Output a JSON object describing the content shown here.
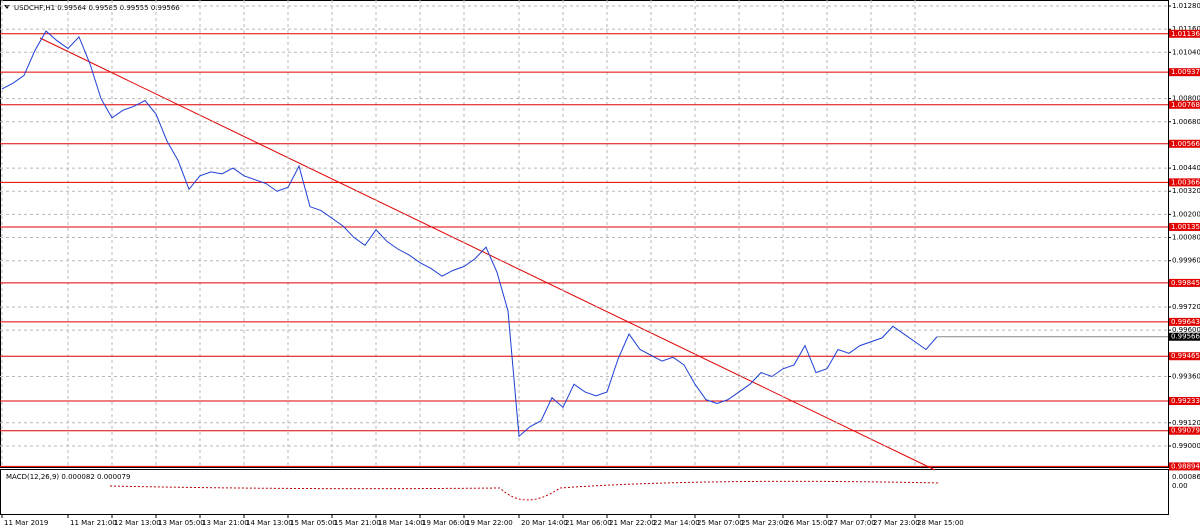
{
  "chart_data": {
    "type": "line",
    "title": "USDCHF,H1  0.99564 0.99585 0.99555 0.99566",
    "categories": [
      "11 Mar 2019",
      null,
      null,
      null,
      null,
      null,
      "11 Mar 21:00",
      null,
      null,
      null,
      "12 Mar 13:00",
      null,
      null,
      null,
      "13 Mar 05:00",
      null,
      null,
      null,
      "13 Mar 21:00",
      null,
      null,
      null,
      "14 Mar 13:00",
      null,
      null,
      null,
      "15 Mar 05:00",
      null,
      null,
      null,
      "15 Mar 21:00",
      null,
      null,
      null,
      "18 Mar 14:00",
      null,
      null,
      null,
      "19 Mar 06:00",
      null,
      null,
      null,
      "19 Mar 22:00",
      null,
      null,
      null,
      null,
      "20 Mar 14:00",
      null,
      null,
      null,
      "21 Mar 06:00",
      null,
      null,
      null,
      "21 Mar 22:00",
      null,
      null,
      null,
      "22 Mar 14:00",
      null,
      null,
      null,
      "25 Mar 07:00",
      null,
      null,
      null,
      "25 Mar 23:00",
      null,
      null,
      null,
      "26 Mar 15:00",
      null,
      null,
      null,
      "27 Mar 07:00",
      null,
      null,
      null,
      "27 Mar 23:00",
      null,
      null,
      null,
      "28 Mar 15:00",
      null,
      null
    ],
    "series": [
      {
        "name": "USDCHF",
        "color": "#1f3fd6",
        "values": [
          1.0085,
          1.0088,
          1.0092,
          1.0105,
          1.0115,
          1.011,
          1.0106,
          1.0112,
          1.0098,
          1.008,
          1.007,
          1.0074,
          1.0076,
          1.0079,
          1.0072,
          1.0058,
          1.0048,
          1.0033,
          1.004,
          1.0042,
          1.0041,
          1.0044,
          1.004,
          1.0038,
          1.0036,
          1.0032,
          1.0034,
          1.0045,
          1.0024,
          1.0022,
          1.0018,
          1.0014,
          1.0008,
          1.0004,
          1.0012,
          1.0006,
          1.0002,
          0.9999,
          0.9995,
          0.9992,
          0.9988,
          0.9991,
          0.9993,
          0.9997,
          1.0003,
          0.999,
          0.997,
          0.9905,
          0.991,
          0.9913,
          0.9925,
          0.992,
          0.9932,
          0.9928,
          0.9926,
          0.9928,
          0.9945,
          0.9958,
          0.995,
          0.9947,
          0.9944,
          0.9946,
          0.9942,
          0.9932,
          0.9924,
          0.9922,
          0.9924,
          0.9928,
          0.9932,
          0.9938,
          0.9936,
          0.994,
          0.9942,
          0.9952,
          0.9938,
          0.994,
          0.995,
          0.9948,
          0.9952,
          0.9954,
          0.9956,
          0.9962,
          0.9958,
          0.9954,
          0.995,
          0.99566
        ]
      }
    ],
    "ylim": [
      0.98891,
      1.01311
    ],
    "yticks": [
      {
        "value": 1.0128,
        "label": "1.01280"
      },
      {
        "value": 1.0116,
        "label": "1.01160"
      },
      {
        "value": 1.0104,
        "label": "1.01040"
      },
      {
        "value": 1.008,
        "label": "1.00800"
      },
      {
        "value": 1.0068,
        "label": "1.00680"
      },
      {
        "value": 1.0044,
        "label": "1.00440"
      },
      {
        "value": 1.0032,
        "label": "1.00320"
      },
      {
        "value": 1.002,
        "label": "1.00200"
      },
      {
        "value": 1.0008,
        "label": "1.00080"
      },
      {
        "value": 0.9996,
        "label": "0.99960"
      },
      {
        "value": 0.9972,
        "label": "0.99720"
      },
      {
        "value": 0.996,
        "label": "0.99600"
      },
      {
        "value": 0.9936,
        "label": "0.99360"
      },
      {
        "value": 0.9912,
        "label": "0.99120"
      },
      {
        "value": 0.99,
        "label": "0.99000"
      }
    ],
    "levels": [
      1.01136,
      1.00937,
      1.00768,
      1.00566,
      1.00366,
      1.00135,
      0.99845,
      0.99643,
      0.99465,
      0.99233,
      0.99079,
      0.98894
    ],
    "level_color": "#e00000",
    "current_price": 0.99566,
    "grid": true,
    "macd_label": "MACD(12,26,9) 0.000082 0.000079",
    "macd_axis_labels": [
      "0.000864",
      "0.00"
    ]
  }
}
